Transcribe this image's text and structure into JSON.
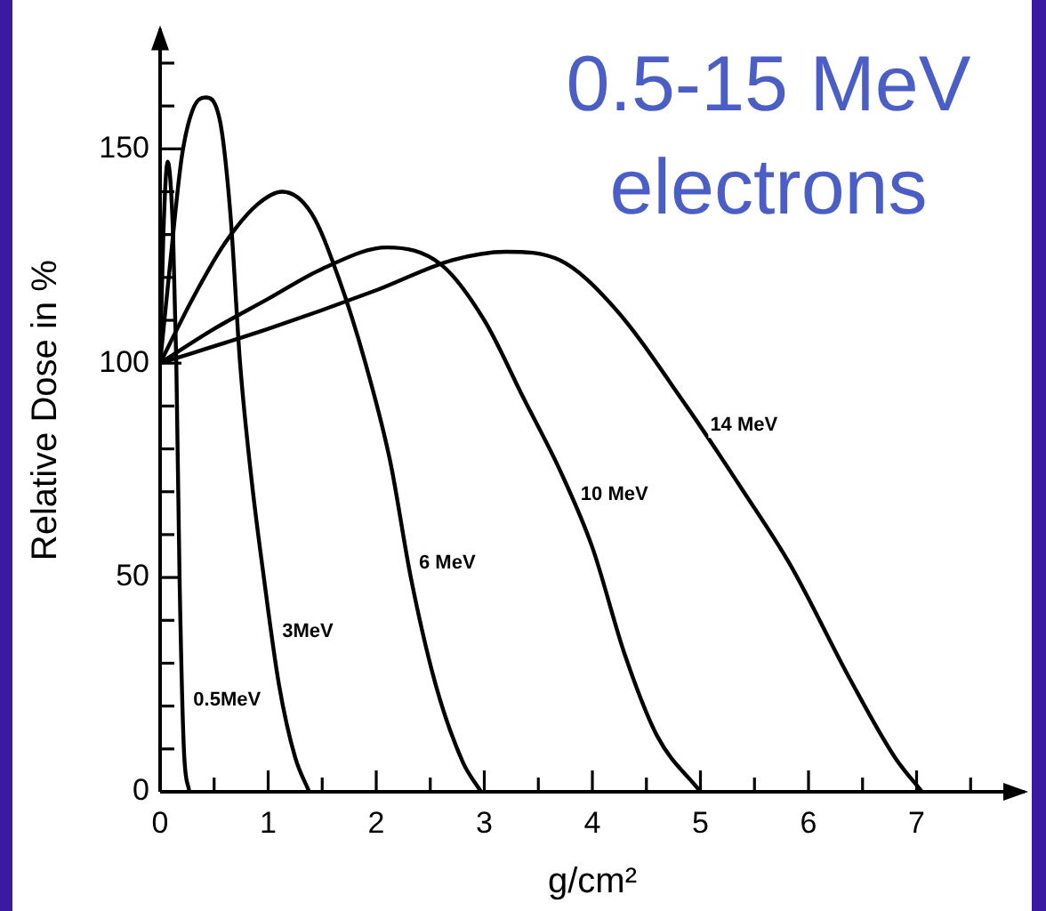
{
  "chart_data": {
    "type": "line",
    "title": "0.5-15 MeV electrons",
    "xlabel": "g/cm²",
    "ylabel": "Relative Dose in %",
    "xlim": [
      0,
      8
    ],
    "ylim": [
      0,
      178
    ],
    "xticks": [
      0,
      {
        "value": 0.5,
        "label": null
      },
      1,
      {
        "value": 1.5,
        "label": null
      },
      2,
      {
        "value": 2.5,
        "label": null
      },
      3,
      {
        "value": 3.5,
        "label": null
      },
      4,
      {
        "value": 4.5,
        "label": null
      },
      5,
      {
        "value": 5.5,
        "label": null
      },
      6,
      {
        "value": 6.5,
        "label": null
      },
      7,
      {
        "value": 7.5,
        "label": null
      }
    ],
    "yticks": [
      0,
      {
        "value": 10,
        "label": null
      },
      {
        "value": 20,
        "label": null
      },
      {
        "value": 30,
        "label": null
      },
      {
        "value": 40,
        "label": null
      },
      50,
      {
        "value": 60,
        "label": null
      },
      {
        "value": 70,
        "label": null
      },
      {
        "value": 80,
        "label": null
      },
      {
        "value": 90,
        "label": null
      },
      100,
      {
        "value": 110,
        "label": null
      },
      {
        "value": 120,
        "label": null
      },
      {
        "value": 130,
        "label": null
      },
      {
        "value": 140,
        "label": null
      },
      150,
      {
        "value": 160,
        "label": null
      },
      {
        "value": 170,
        "label": null
      }
    ],
    "grid": false,
    "legend": false,
    "marker": "none",
    "line_style": "solid",
    "series": [
      {
        "name": "0.5MeV",
        "color": "#000000",
        "x": [
          0,
          0.03,
          0.07,
          0.12,
          0.15,
          0.18,
          0.22,
          0.27
        ],
        "values": [
          100,
          130,
          147,
          130,
          100,
          50,
          10,
          0
        ]
      },
      {
        "name": "3MeV",
        "color": "#000000",
        "x": [
          0,
          0.1,
          0.2,
          0.3,
          0.42,
          0.55,
          0.65,
          0.74,
          0.85,
          0.96,
          1.1,
          1.25,
          1.38
        ],
        "values": [
          100,
          125,
          148,
          159,
          162,
          157,
          135,
          100,
          72,
          50,
          25,
          8,
          0
        ]
      },
      {
        "name": "6 MeV",
        "color": "#000000",
        "x": [
          0,
          0.3,
          0.6,
          0.9,
          1.13,
          1.4,
          1.65,
          1.9,
          2.13,
          2.32,
          2.55,
          2.8,
          2.97
        ],
        "values": [
          100,
          115,
          128,
          137,
          140,
          135,
          120,
          100,
          77,
          50,
          25,
          7,
          0
        ]
      },
      {
        "name": "10 MeV",
        "color": "#000000",
        "x": [
          0,
          0.5,
          1,
          1.5,
          2.1,
          2.6,
          3,
          3.36,
          3.7,
          4,
          4.3,
          4.6,
          5
        ],
        "values": [
          100,
          108,
          115,
          122,
          127,
          123,
          110,
          92,
          75,
          57,
          32,
          13,
          0
        ]
      },
      {
        "name": "14 MeV",
        "color": "#000000",
        "x": [
          0,
          1,
          2,
          2.7,
          3.2,
          3.7,
          4.2,
          4.87,
          5.4,
          5.83,
          6.39,
          6.8,
          7.05
        ],
        "values": [
          100,
          108,
          117,
          124,
          126,
          124,
          113,
          90,
          70,
          53,
          26,
          8,
          0
        ]
      }
    ]
  }
}
